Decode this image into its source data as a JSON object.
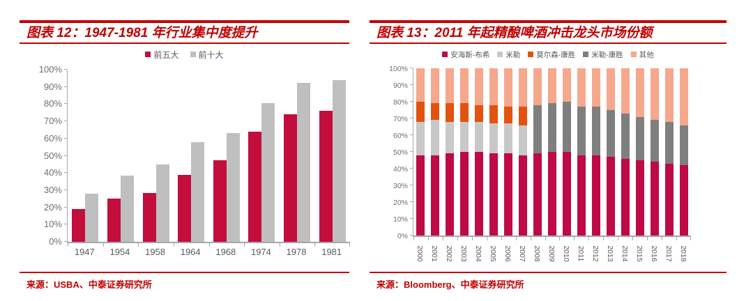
{
  "page": {
    "background": "#ffffff",
    "accent_red": "#c00000"
  },
  "chart_data": [
    {
      "type": "bar",
      "bar_mode": "grouped",
      "title": "图表 12：1947-1981 年行业集中度提升",
      "source": "来源：USBA、中泰证券研究所",
      "categories": [
        "1947",
        "1954",
        "1958",
        "1964",
        "1968",
        "1974",
        "1978",
        "1981"
      ],
      "series": [
        {
          "name": "前五大",
          "color": "#c30d3d",
          "values": [
            19,
            25,
            28.5,
            39,
            47.5,
            64,
            74,
            76
          ]
        },
        {
          "name": "前十大",
          "color": "#bfbfbf",
          "values": [
            28,
            38.5,
            45,
            58,
            63,
            80.5,
            92.5,
            94
          ]
        }
      ],
      "ylim": [
        0,
        100
      ],
      "y_ticks": [
        "0%",
        "10%",
        "20%",
        "30%",
        "40%",
        "50%",
        "60%",
        "70%",
        "80%",
        "90%",
        "100%"
      ],
      "grid": false,
      "legend_position": "top",
      "xlabel": "",
      "ylabel": ""
    },
    {
      "type": "bar",
      "bar_mode": "stacked",
      "title": "图表 13：2011 年起精酿啤酒冲击龙头市场份额",
      "source": "来源：Bloomberg、中泰证券研究所",
      "categories": [
        "2000",
        "2001",
        "2002",
        "2003",
        "2004",
        "2005",
        "2006",
        "2007",
        "2008",
        "2009",
        "2010",
        "2011",
        "2012",
        "2013",
        "2014",
        "2015",
        "2016",
        "2017",
        "2018"
      ],
      "series": [
        {
          "name": "安海斯-布希",
          "color": "#be0a46",
          "values": [
            48,
            48,
            49,
            50,
            50,
            49,
            49,
            48,
            49,
            50,
            50,
            48,
            48,
            47,
            46,
            45,
            44,
            43,
            42
          ]
        },
        {
          "name": "米勒",
          "color": "#c8c8c8",
          "values": [
            20,
            21,
            19,
            18,
            18,
            18,
            18,
            18,
            0,
            0,
            0,
            0,
            0,
            0,
            0,
            0,
            0,
            0,
            0
          ]
        },
        {
          "name": "莫尔森-康胜",
          "color": "#e2530f",
          "values": [
            12,
            10,
            11,
            11,
            10,
            11,
            10,
            11,
            0,
            0,
            0,
            0,
            0,
            0,
            0,
            0,
            0,
            0,
            0
          ]
        },
        {
          "name": "米勒-康胜",
          "color": "#7f7f7f",
          "values": [
            0,
            0,
            0,
            0,
            0,
            0,
            0,
            0,
            29,
            29,
            30,
            29,
            29,
            28,
            27,
            26,
            25,
            25,
            24
          ]
        },
        {
          "name": "其他",
          "color": "#f5a88c",
          "values": [
            20,
            21,
            21,
            21,
            22,
            22,
            23,
            23,
            22,
            21,
            20,
            23,
            23,
            25,
            27,
            29,
            31,
            32,
            34
          ]
        }
      ],
      "ylim": [
        0,
        100
      ],
      "y_ticks": [
        "0%",
        "10%",
        "20%",
        "30%",
        "40%",
        "50%",
        "60%",
        "70%",
        "80%",
        "90%",
        "100%"
      ],
      "grid": false,
      "legend_position": "top",
      "xlabel": "",
      "ylabel": ""
    }
  ]
}
